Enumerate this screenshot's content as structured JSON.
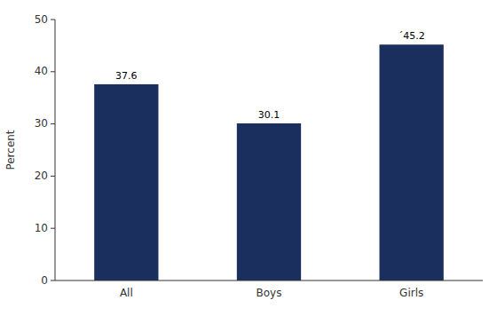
{
  "chart_data": {
    "type": "bar",
    "ylabel": "Percent",
    "categories": [
      "All",
      "Boys",
      "Girls"
    ],
    "values": [
      37.6,
      30.1,
      45.2
    ],
    "value_labels": [
      "37.6",
      "30.1",
      "´45.2"
    ],
    "data_labels": true,
    "color": "#1b2f5e",
    "ylim": [
      0,
      50
    ],
    "yticks": [
      0,
      10,
      20,
      30,
      40,
      50
    ],
    "grid": false
  }
}
